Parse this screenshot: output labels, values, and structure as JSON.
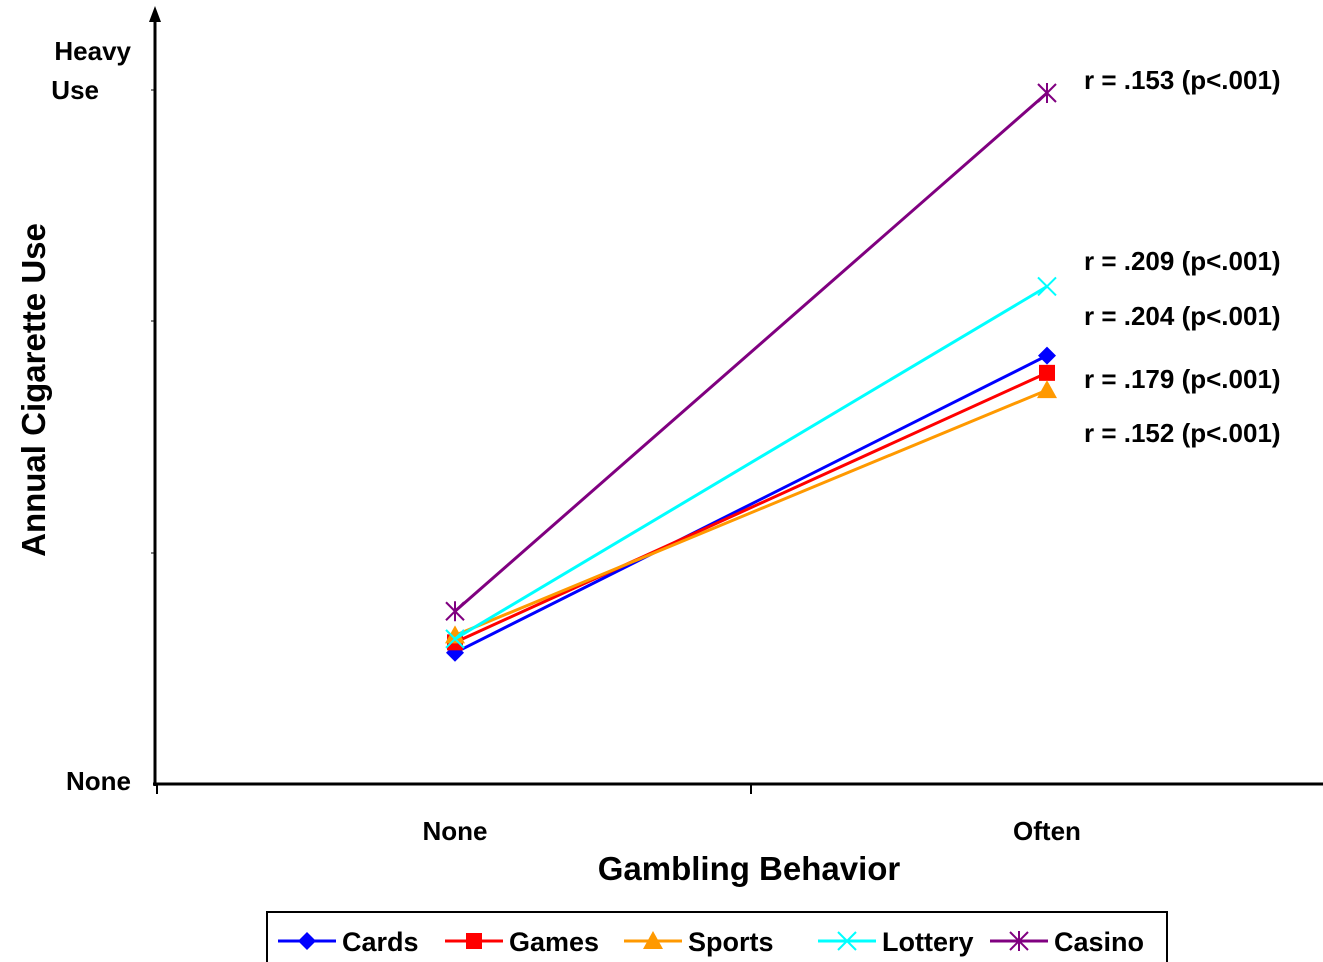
{
  "chart_data": {
    "type": "line",
    "xlabel": "Gambling Behavior",
    "ylabel": "Annual Cigarette Use",
    "categories": [
      "None",
      "Often"
    ],
    "y_tick_labels": {
      "top_line1": "Heavy",
      "top_line2": "Use",
      "bottom": "None"
    },
    "ylim": [
      0,
      1
    ],
    "grid": false,
    "legend_position": "bottom",
    "series": [
      {
        "name": "Cards",
        "color": "#0000ff",
        "marker": "diamond",
        "values": [
          0.19,
          0.62
        ]
      },
      {
        "name": "Games",
        "color": "#ff0000",
        "marker": "square",
        "values": [
          0.205,
          0.595
        ]
      },
      {
        "name": "Sports",
        "color": "#ff9900",
        "marker": "triangle",
        "values": [
          0.215,
          0.57
        ]
      },
      {
        "name": "Lottery",
        "color": "#00ffff",
        "marker": "x",
        "values": [
          0.21,
          0.72
        ]
      },
      {
        "name": "Casino",
        "color": "#800080",
        "marker": "star",
        "values": [
          0.25,
          1.0
        ]
      }
    ],
    "annotations": [
      "r = .153 (p<.001)",
      "r = .209 (p<.001)",
      "r = .204 (p<.001)",
      "r = .179 (p<.001)",
      "r = .152 (p<.001)"
    ]
  }
}
